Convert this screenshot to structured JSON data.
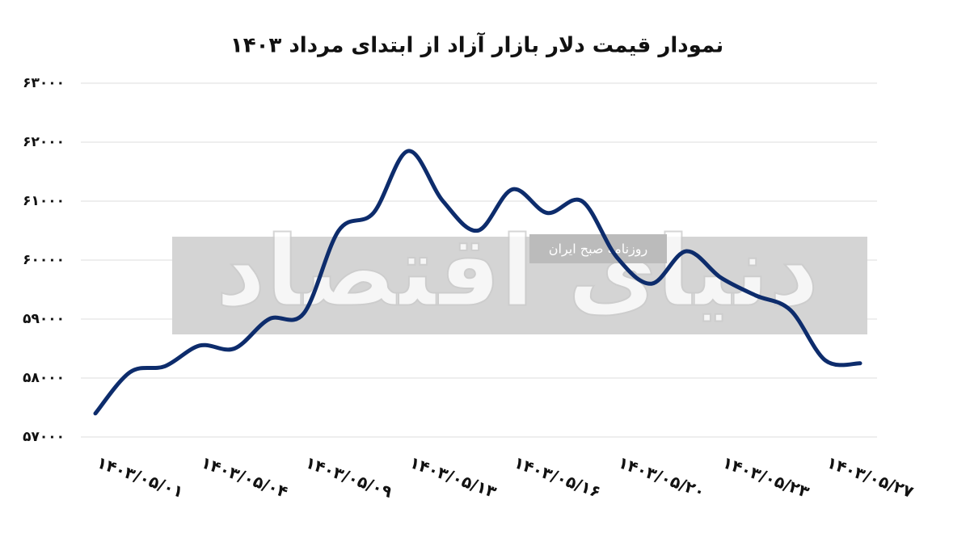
{
  "chart_data": {
    "type": "line",
    "title": "نمودار قیمت دلار بازار آزاد از ابتدای مرداد ۱۴۰۳",
    "watermark": "دنیای اقتصاد",
    "watermark_subtitle": "روزنامه صبح ایران",
    "categories": [
      "۱۴۰۳/۰۵/۰۱",
      null,
      null,
      "۱۴۰۳/۰۵/۰۴",
      null,
      null,
      "۱۴۰۳/۰۵/۰۹",
      null,
      null,
      "۱۴۰۳/۰۵/۱۳",
      null,
      null,
      "۱۴۰۳/۰۵/۱۶",
      null,
      null,
      "۱۴۰۳/۰۵/۲۰",
      null,
      null,
      "۱۴۰۳/۰۵/۲۳",
      null,
      null,
      "۱۴۰۳/۰۵/۲۷",
      null
    ],
    "series": [
      {
        "color": "#0d2c6c",
        "values": [
          57400,
          58100,
          58200,
          58550,
          58500,
          59000,
          59100,
          60500,
          60800,
          61850,
          61000,
          60500,
          61200,
          60800,
          61000,
          60050,
          59600,
          60150,
          59700,
          59400,
          59150,
          58300,
          58250
        ]
      }
    ],
    "ylim": [
      57000,
      63000
    ],
    "yticks": [
      {
        "value": 57000,
        "label": "۵۷۰۰۰"
      },
      {
        "value": 58000,
        "label": "۵۸۰۰۰"
      },
      {
        "value": 59000,
        "label": "۵۹۰۰۰"
      },
      {
        "value": 60000,
        "label": "۶۰۰۰۰"
      },
      {
        "value": 61000,
        "label": "۶۱۰۰۰"
      },
      {
        "value": 62000,
        "label": "۶۲۰۰۰"
      },
      {
        "value": 63000,
        "label": "۶۳۰۰۰"
      }
    ],
    "grid": true
  }
}
